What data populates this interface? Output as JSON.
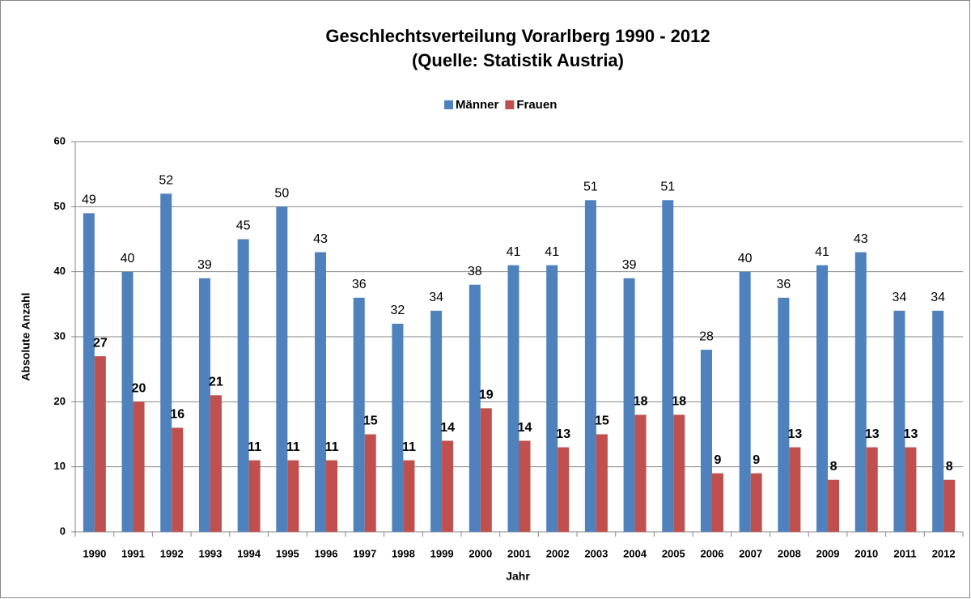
{
  "chart_data": {
    "type": "bar",
    "title": "Geschlechtsverteilung Vorarlberg 1990 - 2012",
    "subtitle": "(Quelle: Statistik Austria)",
    "x_label": "Jahr",
    "y_label": "Absolute Anzahl",
    "categories": [
      "1990",
      "1991",
      "1992",
      "1993",
      "1994",
      "1995",
      "1996",
      "1997",
      "1998",
      "1999",
      "2000",
      "2001",
      "2002",
      "2003",
      "2004",
      "2005",
      "2006",
      "2007",
      "2008",
      "2009",
      "2010",
      "2011",
      "2012"
    ],
    "series": [
      {
        "name": "Männer",
        "color": "#4f81bd",
        "values": [
          49,
          40,
          52,
          39,
          45,
          50,
          43,
          36,
          32,
          34,
          38,
          41,
          41,
          51,
          39,
          51,
          28,
          40,
          36,
          41,
          43,
          34,
          34
        ]
      },
      {
        "name": "Frauen",
        "color": "#c0504d",
        "values": [
          27,
          20,
          16,
          21,
          11,
          11,
          11,
          15,
          11,
          14,
          19,
          14,
          13,
          15,
          18,
          18,
          9,
          9,
          13,
          8,
          13,
          13,
          8
        ]
      }
    ],
    "ylim": [
      0,
      60
    ],
    "yticks": [
      0,
      10,
      20,
      30,
      40,
      50,
      60
    ],
    "grid": true,
    "legend": "top"
  }
}
